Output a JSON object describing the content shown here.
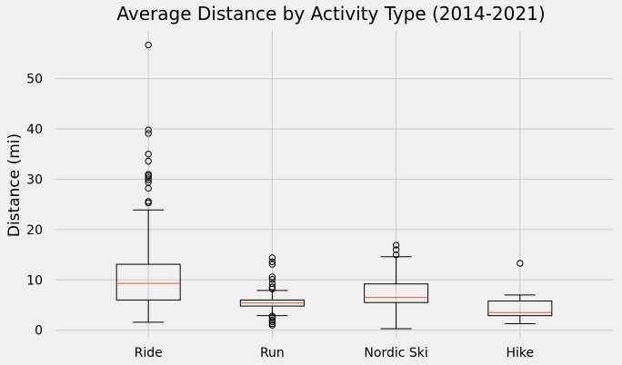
{
  "chart_data": {
    "type": "box",
    "title": "Average Distance by Activity Type (2014-2021)",
    "xlabel": "",
    "ylabel": "Distance (mi)",
    "ylim": [
      -1.5,
      59.5
    ],
    "yticks": [
      0,
      10,
      20,
      30,
      40,
      50
    ],
    "grid": true,
    "colors": {
      "background": "#f0f0f0",
      "grid": "#cbcbcb",
      "box": "#000000",
      "median": "#e5553b"
    },
    "categories": [
      "Ride",
      "Run",
      "Nordic Ski",
      "Hike"
    ],
    "boxes": [
      {
        "label": "Ride",
        "whisker_low": 1.6,
        "q1": 6.0,
        "median": 9.3,
        "q3": 13.1,
        "whisker_high": 23.9,
        "outliers": [
          25.3,
          25.6,
          28.2,
          29.4,
          29.9,
          30.3,
          30.7,
          31.0,
          33.6,
          35.0,
          39.1,
          39.8,
          56.7
        ]
      },
      {
        "label": "Run",
        "whisker_low": 2.9,
        "q1": 4.8,
        "median": 5.4,
        "q3": 6.0,
        "whisker_high": 7.9,
        "outliers": [
          1.0,
          1.3,
          1.7,
          2.0,
          2.5,
          2.8,
          8.2,
          8.6,
          9.3,
          10.1,
          10.6,
          13.1,
          13.6,
          14.4
        ]
      },
      {
        "label": "Nordic Ski",
        "whisker_low": 0.3,
        "q1": 5.5,
        "median": 6.5,
        "q3": 9.2,
        "whisker_high": 14.6,
        "outliers": [
          15.0,
          16.0,
          16.9
        ]
      },
      {
        "label": "Hike",
        "whisker_low": 1.3,
        "q1": 2.9,
        "median": 3.5,
        "q3": 5.8,
        "whisker_high": 7.0,
        "outliers": [
          13.3
        ]
      }
    ]
  }
}
